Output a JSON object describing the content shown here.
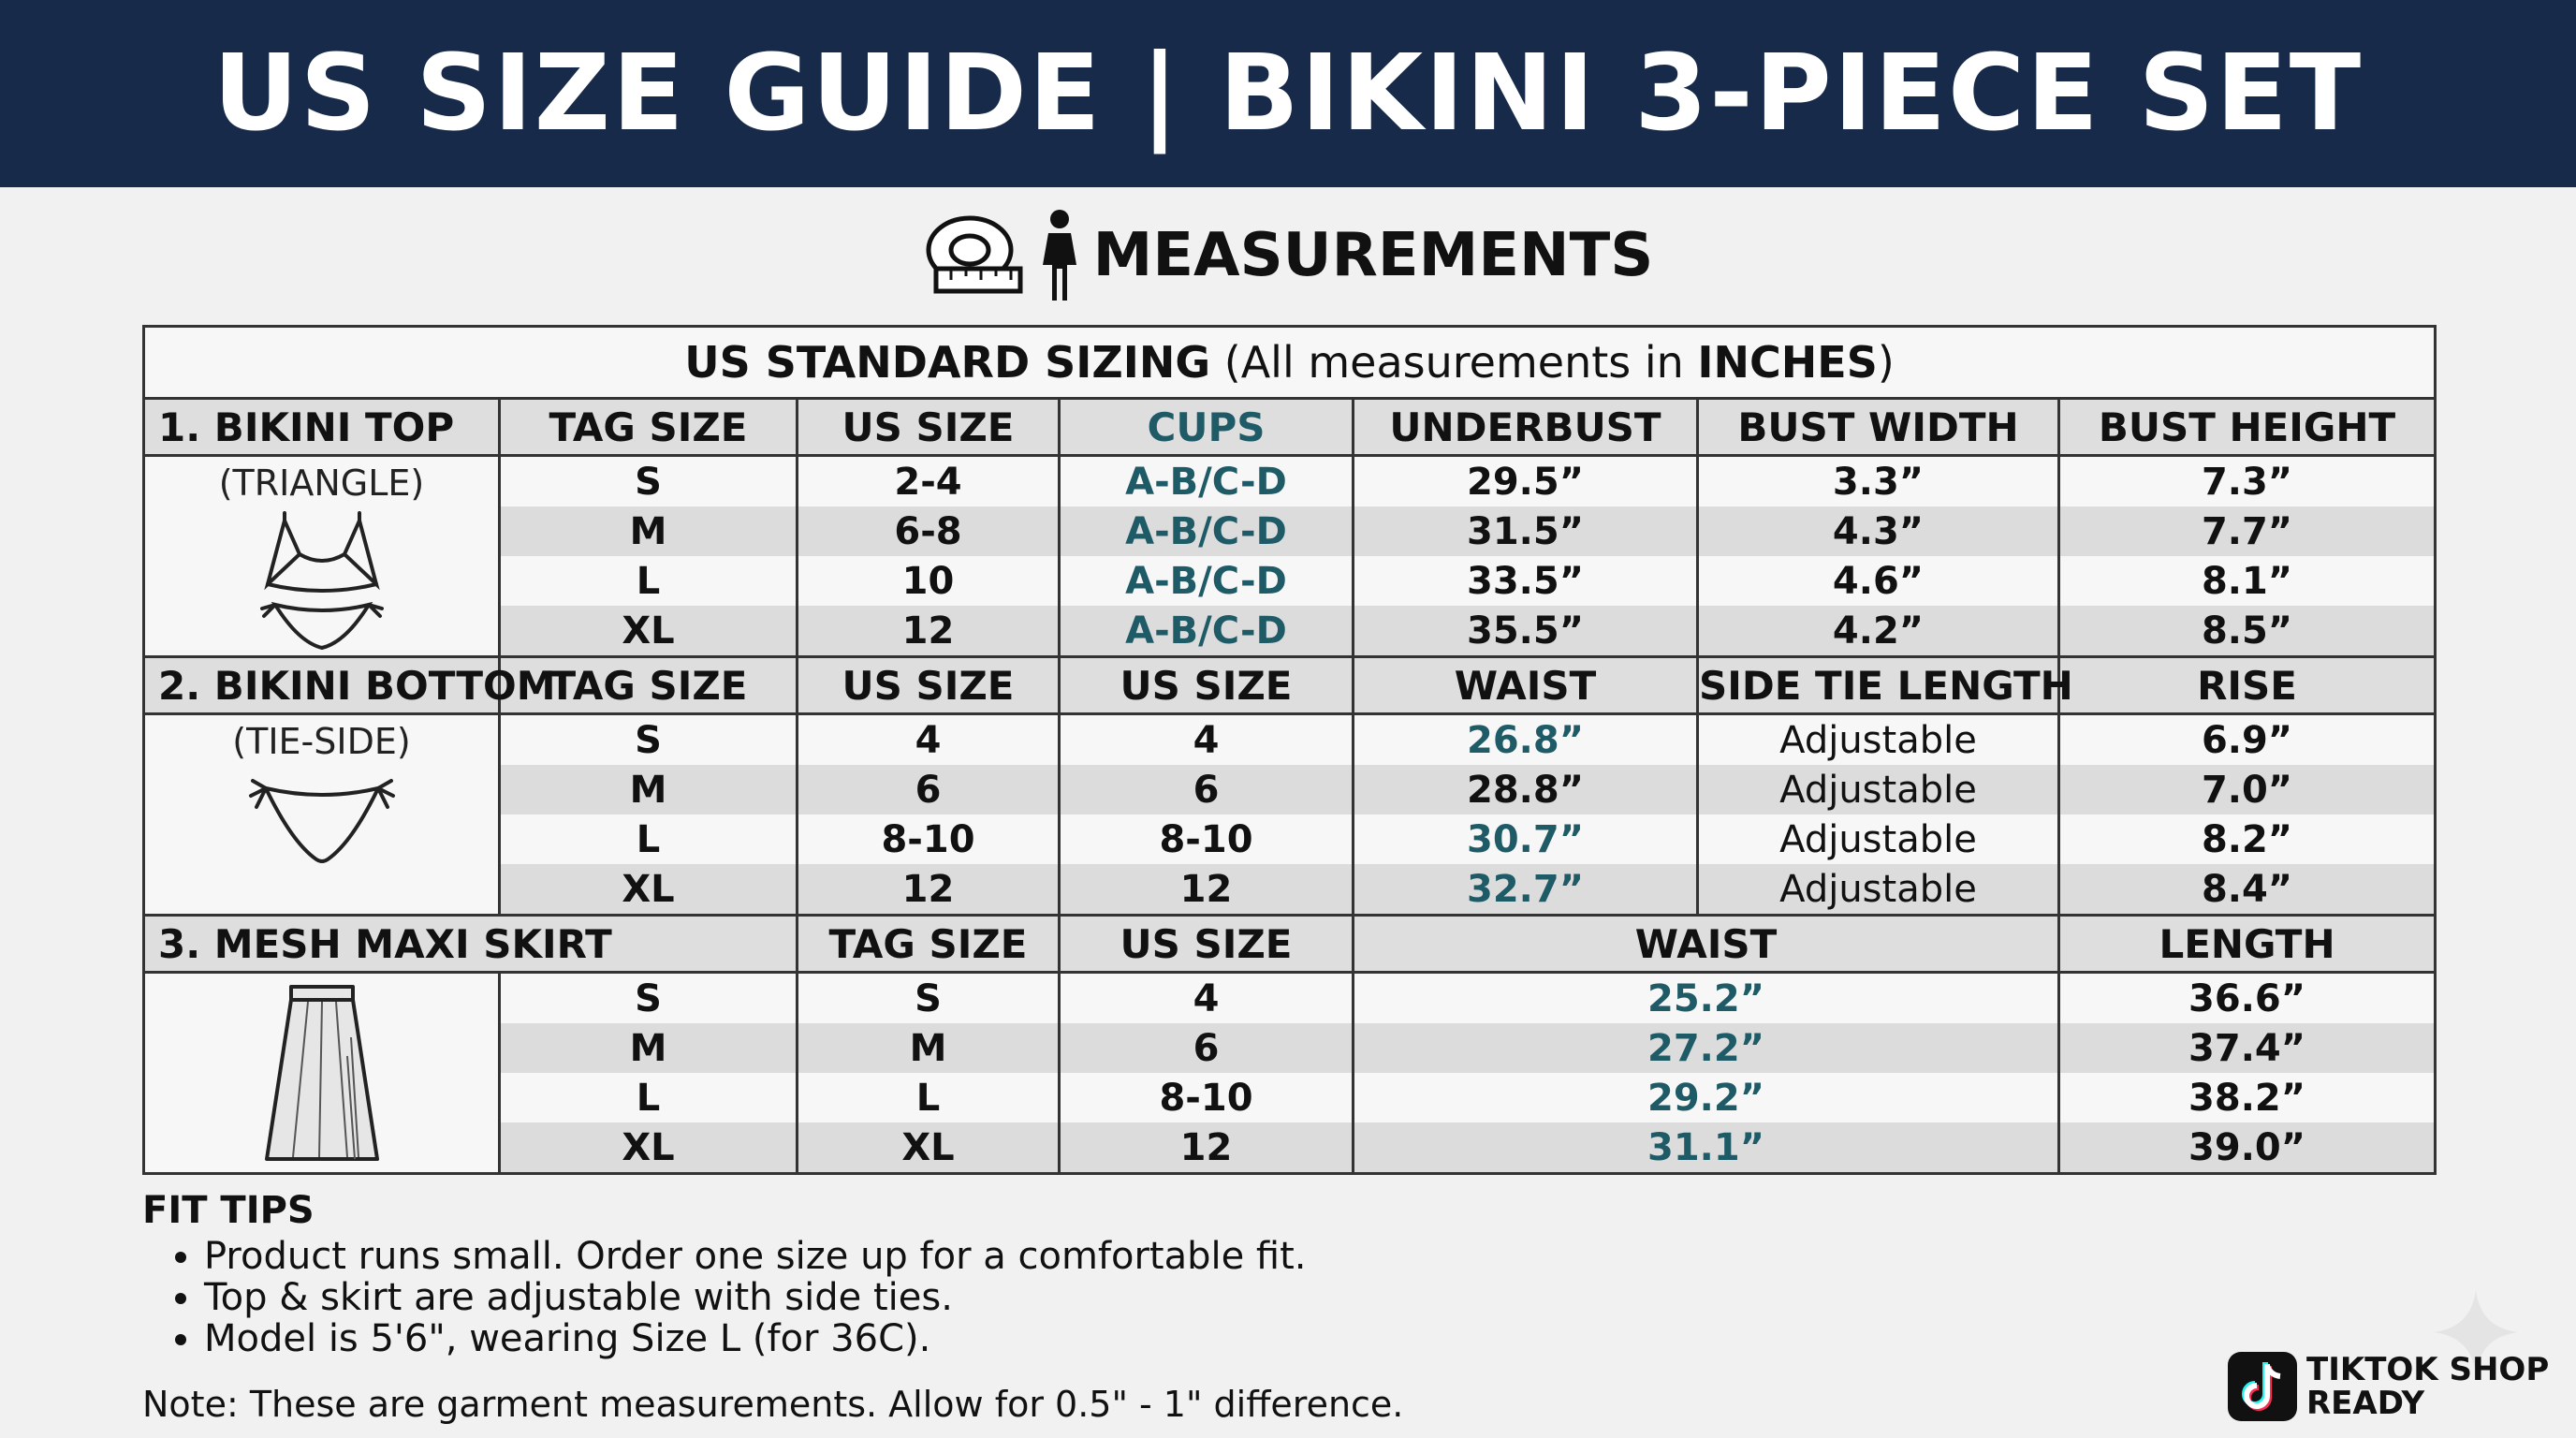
{
  "banner": {
    "title": "US SIZE GUIDE | BIKINI 3-PIECE SET"
  },
  "measurements": {
    "title": "MEASUREMENTS",
    "icons": [
      "tape-measure-icon",
      "person-icon"
    ]
  },
  "table": {
    "caption_bold1": "US STANDARD SIZING",
    "caption_mid": " (All measurements in ",
    "caption_bold2": "INCHES",
    "caption_end": ")",
    "top": {
      "headers": [
        "1. BIKINI TOP",
        "TAG SIZE",
        "US SIZE",
        "CUPS",
        "UNDERBUST",
        "BUST WIDTH",
        "BUST HEIGHT"
      ],
      "subtitle": "(TRIANGLE)",
      "rows": [
        [
          "S",
          "2-4",
          "A-B/C-D",
          "29.5”",
          "3.3”",
          "7.3”"
        ],
        [
          "M",
          "6-8",
          "A-B/C-D",
          "31.5”",
          "4.3”",
          "7.7”"
        ],
        [
          "L",
          "10",
          "A-B/C-D",
          "33.5”",
          "4.6”",
          "8.1”"
        ],
        [
          "XL",
          "12",
          "A-B/C-D",
          "35.5”",
          "4.2”",
          "8.5”"
        ]
      ]
    },
    "bottom": {
      "headers": [
        "2. BIKINI BOTTOM",
        "TAG SIZE",
        "US SIZE",
        "US SIZE",
        "WAIST",
        "SIDE TIE LENGTH",
        "RISE"
      ],
      "subtitle": "(TIE-SIDE)",
      "rows": [
        [
          "S",
          "4",
          "4",
          "26.8”",
          "Adjustable",
          "6.9”"
        ],
        [
          "M",
          "6",
          "6",
          "28.8”",
          "Adjustable",
          "7.0”"
        ],
        [
          "L",
          "8-10",
          "8-10",
          "30.7”",
          "Adjustable",
          "8.2”"
        ],
        [
          "XL",
          "12",
          "12",
          "32.7”",
          "Adjustable",
          "8.4”"
        ]
      ]
    },
    "skirt": {
      "headers": [
        "3. MESH MAXI SKIRT",
        "TAG SIZE",
        "US SIZE",
        "WAIST",
        "LENGTH"
      ],
      "rows": [
        [
          "S",
          "S",
          "4",
          "25.2”",
          "36.6”"
        ],
        [
          "M",
          "M",
          "6",
          "27.2”",
          "37.4”"
        ],
        [
          "L",
          "L",
          "8-10",
          "29.2”",
          "38.2”"
        ],
        [
          "XL",
          "XL",
          "12",
          "31.1”",
          "39.0”"
        ]
      ]
    }
  },
  "fit_tips": {
    "title": "FIT TIPS",
    "items": [
      "Product runs small. Order one size up for a comfortable fit.",
      "Top & skirt are adjustable with side ties.",
      "Model is 5'6\", wearing Size L (for 36C)."
    ]
  },
  "note": "Note: These are garment measurements. Allow for 0.5\" - 1\" difference.",
  "badge": {
    "line1": "TIKTOK SHOP",
    "line2": "READY"
  },
  "colors": {
    "banner": "#172a4a",
    "accent_teal": "#1f5b66"
  }
}
